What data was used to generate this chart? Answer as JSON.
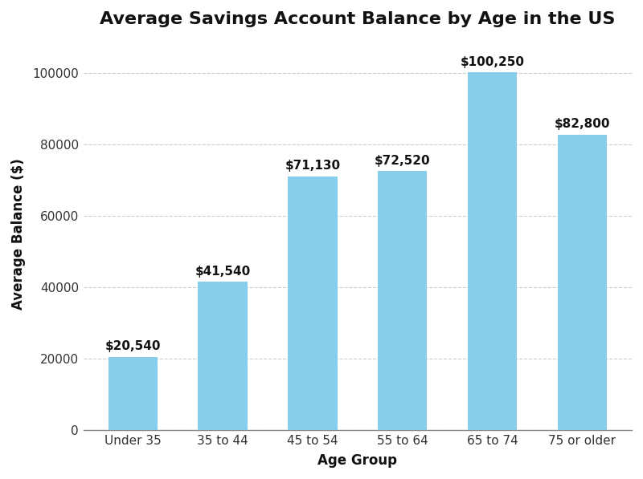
{
  "title": "Average Savings Account Balance by Age in the US",
  "categories": [
    "Under 35",
    "35 to 44",
    "45 to 54",
    "55 to 64",
    "65 to 74",
    "75 or older"
  ],
  "values": [
    20540,
    41540,
    71130,
    72520,
    100250,
    82800
  ],
  "labels": [
    "$20,540",
    "$41,540",
    "$71,130",
    "$72,520",
    "$100,250",
    "$82,800"
  ],
  "bar_color": "#87CEEB",
  "bar_edgecolor": "none",
  "xlabel": "Age Group",
  "ylabel": "Average Balance ($)",
  "ylim": [
    0,
    110000
  ],
  "background_color": "#ffffff",
  "grid_color": "#cccccc",
  "title_fontsize": 16,
  "label_fontsize": 12,
  "tick_fontsize": 11,
  "annotation_fontsize": 11,
  "yticks": [
    0,
    20000,
    40000,
    60000,
    80000,
    100000
  ],
  "ytick_labels": [
    "0",
    "20000",
    "40000",
    "60000",
    "80000",
    "100000"
  ]
}
